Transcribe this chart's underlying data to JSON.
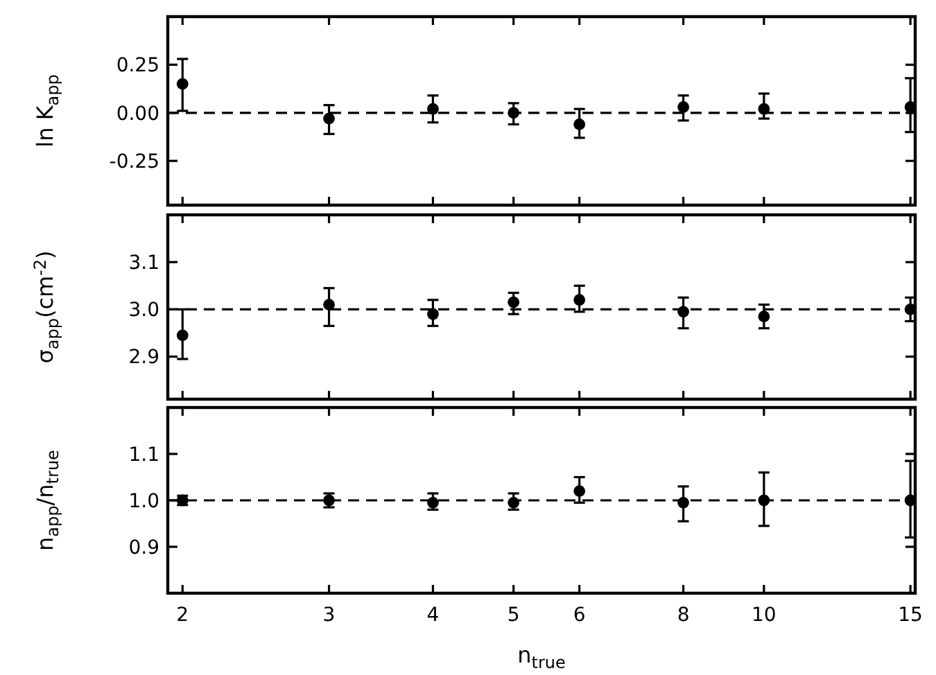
{
  "chart_data": [
    {
      "type": "scatter",
      "ylabel": "ln K$_{app}$",
      "log": "x",
      "marker": "circle",
      "tick_labels": "y",
      "x": [
        2,
        3,
        4,
        5,
        6,
        8,
        10,
        15
      ],
      "xlim": [
        1.92,
        15.2
      ],
      "xticks": [
        2,
        3,
        4,
        5,
        6,
        8,
        10,
        15
      ],
      "ylim": [
        -0.48,
        0.5
      ],
      "yticks": [
        {
          "value": 0.25,
          "label": "0.25"
        },
        {
          "value": 0,
          "label": "0.00"
        },
        {
          "value": -0.25,
          "label": "-0.25"
        }
      ],
      "series": [
        {
          "color": "#000000",
          "values": [
            0.15,
            -0.03,
            0.02,
            0.0,
            -0.06,
            0.03,
            0.02,
            0.03
          ],
          "errors": [
            [
              0.01,
              0.28
            ],
            [
              -0.11,
              0.04
            ],
            [
              -0.05,
              0.09
            ],
            [
              -0.06,
              0.05
            ],
            [
              -0.13,
              0.02
            ],
            [
              -0.04,
              0.09
            ],
            [
              -0.03,
              0.1
            ],
            [
              -0.1,
              0.18
            ]
          ]
        }
      ],
      "ref_lines": [
        {
          "axis": "y",
          "value": 0,
          "color": "#000000",
          "line_style": "dashed"
        }
      ]
    },
    {
      "type": "scatter",
      "ylabel": "σ$_{app}$(cm$^{-2}$)",
      "log": "x",
      "marker": "circle",
      "tick_labels": "y",
      "x": [
        2,
        3,
        4,
        5,
        6,
        8,
        10,
        15
      ],
      "xlim": [
        1.92,
        15.2
      ],
      "xticks": [
        2,
        3,
        4,
        5,
        6,
        8,
        10,
        15
      ],
      "ylim": [
        2.81,
        3.2
      ],
      "yticks": [
        {
          "value": 3.1,
          "label": "3.1"
        },
        {
          "value": 3.0,
          "label": "3.0"
        },
        {
          "value": 2.9,
          "label": "2.9"
        }
      ],
      "series": [
        {
          "color": "#000000",
          "values": [
            2.945,
            3.01,
            2.99,
            3.015,
            3.02,
            2.995,
            2.985,
            3.0
          ],
          "errors": [
            [
              2.895,
              3.0
            ],
            [
              2.965,
              3.045
            ],
            [
              2.965,
              3.02
            ],
            [
              2.99,
              3.035
            ],
            [
              2.995,
              3.05
            ],
            [
              2.96,
              3.025
            ],
            [
              2.96,
              3.01
            ],
            [
              2.975,
              3.025
            ]
          ]
        }
      ],
      "ref_lines": [
        {
          "axis": "y",
          "value": 3.0,
          "color": "#000000",
          "line_style": "dashed"
        }
      ]
    },
    {
      "type": "scatter",
      "ylabel": "n$_{app}$/n$_{true}$",
      "xlabel": "n$_{true}$",
      "log": "x",
      "marker": "circle",
      "x": [
        2,
        3,
        4,
        5,
        6,
        8,
        10,
        15
      ],
      "xlim": [
        1.92,
        15.2
      ],
      "xticks": [
        2,
        3,
        4,
        5,
        6,
        8,
        10,
        15
      ],
      "ylim": [
        0.8,
        1.2
      ],
      "yticks": [
        {
          "value": 1.1,
          "label": "1.1"
        },
        {
          "value": 1.0,
          "label": "1.0"
        },
        {
          "value": 0.9,
          "label": "0.9"
        }
      ],
      "series": [
        {
          "color": "#000000",
          "values": [
            1.0,
            1.0,
            0.995,
            0.995,
            1.02,
            0.995,
            1.0,
            1.0
          ],
          "errors": [
            [
              0.99,
              1.01
            ],
            [
              0.985,
              1.015
            ],
            [
              0.98,
              1.015
            ],
            [
              0.98,
              1.015
            ],
            [
              0.995,
              1.05
            ],
            [
              0.955,
              1.03
            ],
            [
              0.945,
              1.06
            ],
            [
              0.92,
              1.085
            ]
          ]
        }
      ],
      "ref_lines": [
        {
          "axis": "y",
          "value": 1.0,
          "color": "#000000",
          "line_style": "dashed"
        }
      ]
    }
  ]
}
